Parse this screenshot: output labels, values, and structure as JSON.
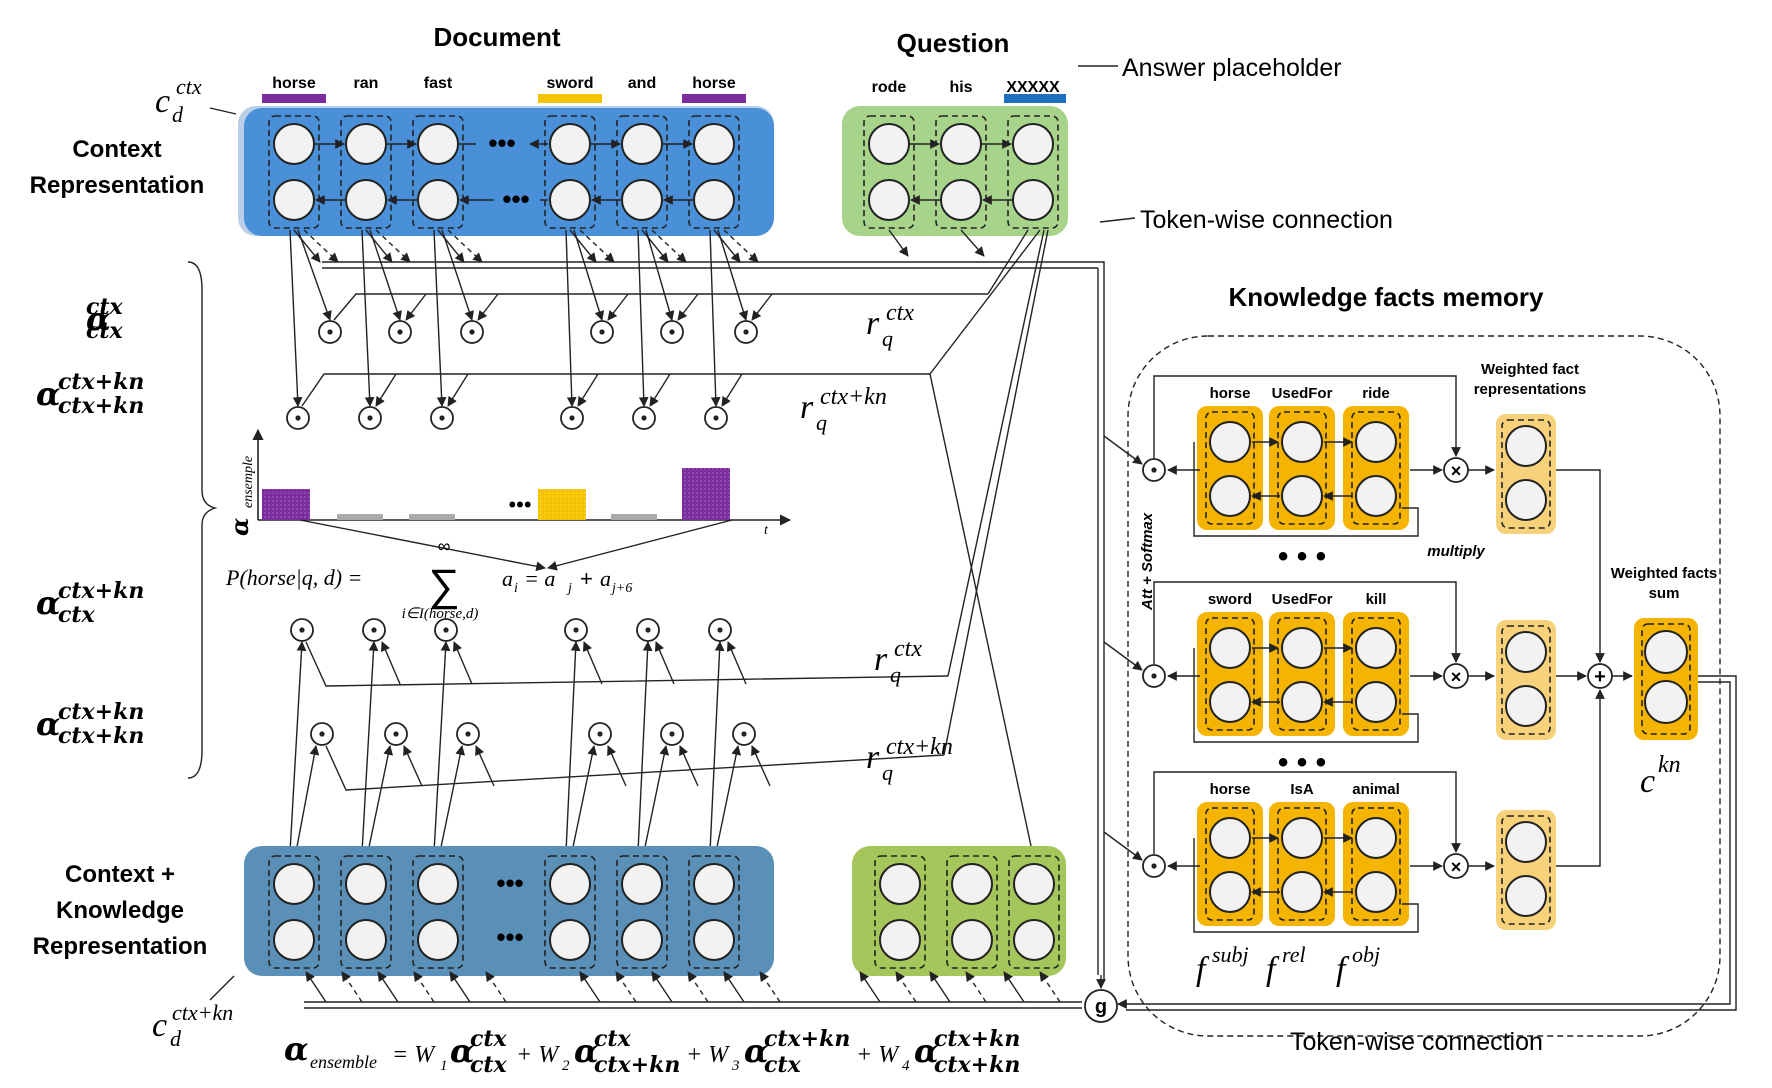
{
  "headers": {
    "document": "Document",
    "question": "Question",
    "answer_placeholder": "Answer placeholder",
    "token_wise_top": "Token-wise connection",
    "knowledge_memory": "Knowledge facts memory",
    "weighted_fact_repr": [
      "Weighted fact",
      "representations"
    ],
    "weighted_facts_sum": [
      "Weighted facts",
      "sum"
    ],
    "token_wise_bottom": "Token-wise connection",
    "multiply": "multiply",
    "att_softmax": "Att + Softmax"
  },
  "doc_words": [
    "horse",
    "ran",
    "fast",
    "sword",
    "and",
    "horse"
  ],
  "question_words": [
    "rode",
    "his",
    "XXXXX"
  ],
  "side_labels": {
    "context_repr": [
      "Context",
      "Representation"
    ],
    "ctx_kn_repr": [
      "Context +",
      "Knowledge",
      "Representation"
    ]
  },
  "math": {
    "c_d": "c",
    "c_d_sub": "d",
    "c_d_sup": "ctx",
    "c_d2_sup": "ctx+kn",
    "alpha": "α",
    "sup_ctx": "ctx",
    "sup_ctxkn": "ctx+kn",
    "r": "r",
    "r_sub": "q",
    "y_axis": "α",
    "y_axis_sub": "ensemple",
    "x_axis": "t",
    "prob_lhs": "P(horse|q, d) =",
    "sum_sym": "∑",
    "sum_top": "∞",
    "sum_bottom": "i∈I(horse,d)",
    "prob_rhs": "a",
    "prob_rhs_full": "= a",
    "c_kn": "c",
    "c_kn_sup": "kn",
    "f": "f",
    "f_subj": "subj",
    "f_rel": "rel",
    "f_obj": "obj",
    "g": "g",
    "ensemble_formula": {
      "lhs": "α",
      "lhs_sub": "ensemble",
      "eq": "= W",
      "plus": "+ W"
    }
  },
  "facts": [
    {
      "subj": "horse",
      "rel": "UsedFor",
      "obj": "ride"
    },
    {
      "subj": "sword",
      "rel": "UsedFor",
      "obj": "kill"
    },
    {
      "subj": "horse",
      "rel": "IsA",
      "obj": "animal"
    }
  ],
  "ellipsis": "•••",
  "dots3": "• • •",
  "colors": {
    "context_blue": "#4a90d9",
    "ctxkn_blue": "#5a8fb8",
    "question_green": "#9acb6e",
    "question_green2": "#a4c65a",
    "fact_orange": "#f5b400",
    "weighted_light": "#f7d27a",
    "horse_purple": "#7b2d9e",
    "sword_yellow": "#f5c400",
    "placeholder_blue": "#1f6fc0",
    "grey_bar": "#aaaaaa"
  },
  "chart_bars": [
    {
      "token": "horse",
      "color": "purple",
      "level": 0.6
    },
    {
      "token": "ran",
      "color": "grey",
      "level": 0.12
    },
    {
      "token": "fast",
      "color": "grey",
      "level": 0.12
    },
    {
      "token": "sword",
      "color": "yellow",
      "level": 0.6
    },
    {
      "token": "and",
      "color": "grey",
      "level": 0.12
    },
    {
      "token": "horse",
      "color": "purple",
      "level": 1.0
    }
  ]
}
